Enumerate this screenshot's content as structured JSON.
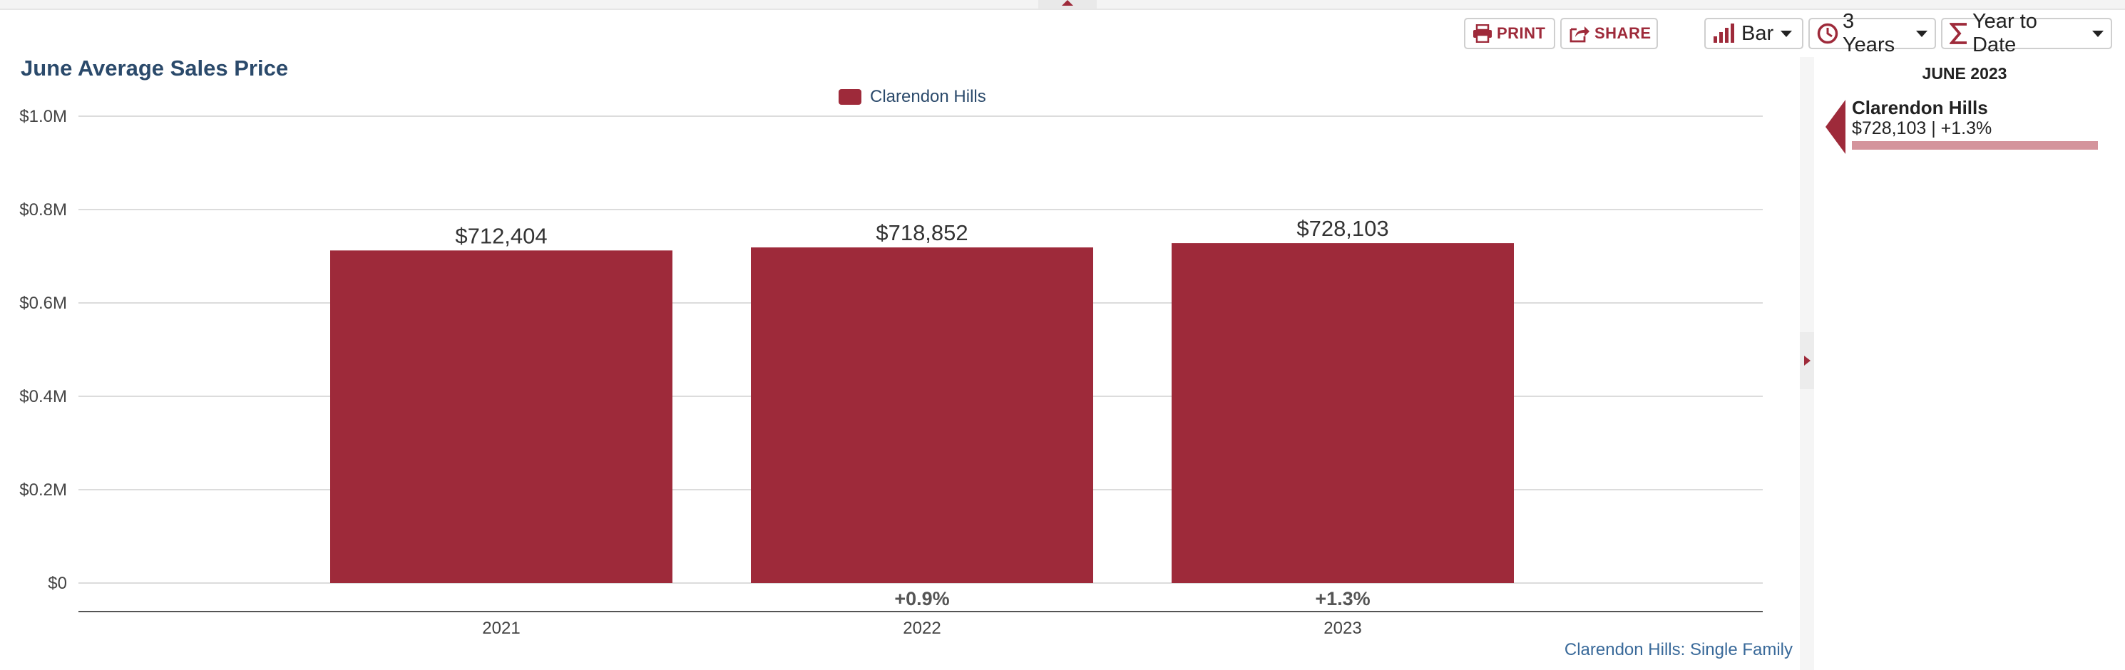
{
  "toolbar": {
    "print_label": "PRINT",
    "share_label": "SHARE",
    "chart_type": "Bar",
    "period": "3 Years",
    "aggregate": "Year to Date"
  },
  "colors": {
    "brand": "#9e2a3a",
    "title": "#2b4a6b",
    "link": "#3a6a9a",
    "panel_bar": "#d4949c"
  },
  "icons": {
    "print": "printer-icon",
    "share": "share-icon",
    "chart_type": "bar-chart-icon",
    "period": "clock-icon",
    "aggregate": "sigma-icon"
  },
  "footnote": "Clarendon Hills: Single Family",
  "side_panel": {
    "title": "JUNE 2023",
    "name": "Clarendon Hills",
    "value": "$728,103 | +1.3%"
  },
  "chart_data": {
    "type": "bar",
    "title": "June Average Sales Price",
    "categories": [
      "2021",
      "2022",
      "2023"
    ],
    "series": [
      {
        "name": "Clarendon Hills",
        "values": [
          712404,
          718852,
          728103
        ],
        "value_labels": [
          "$712,404",
          "$718,852",
          "$728,103"
        ],
        "change_labels": [
          "",
          "+0.9%",
          "+1.3%"
        ]
      }
    ],
    "ylim": [
      0,
      1000000
    ],
    "yticks": [
      {
        "value": 0,
        "label": "$0"
      },
      {
        "value": 200000,
        "label": "$0.2M"
      },
      {
        "value": 400000,
        "label": "$0.4M"
      },
      {
        "value": 600000,
        "label": "$0.6M"
      },
      {
        "value": 800000,
        "label": "$0.8M"
      },
      {
        "value": 1000000,
        "label": "$1.0M"
      }
    ],
    "grid": true,
    "legend": "top-center"
  }
}
